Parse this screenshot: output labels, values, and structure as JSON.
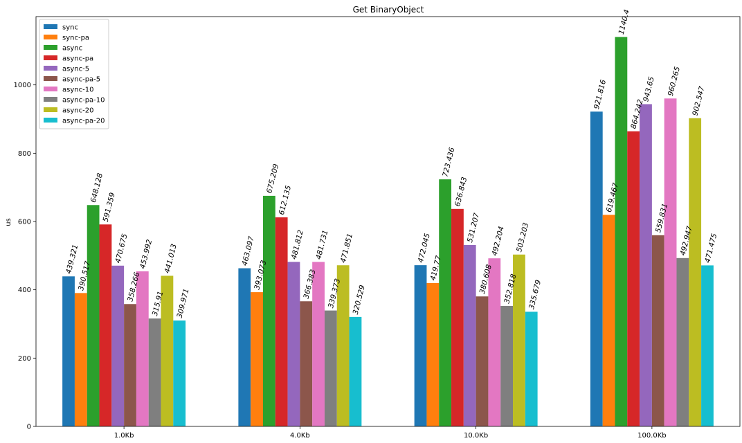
{
  "chart_data": {
    "type": "bar",
    "title": "Get BinaryObject",
    "xlabel": "",
    "ylabel": "us",
    "ylim": [
      0,
      1200
    ],
    "yticks": [
      0,
      200,
      400,
      600,
      800,
      1000
    ],
    "grid": false,
    "legend_position": "top-left",
    "categories": [
      "1.0Kb",
      "4.0Kb",
      "10.0Kb",
      "100.0Kb"
    ],
    "series": [
      {
        "name": "sync",
        "color": "#1f77b4",
        "values": [
          439.321,
          463.097,
          472.045,
          921.816
        ],
        "labels": [
          "439.321",
          "463.097",
          "472.045",
          "921.816"
        ]
      },
      {
        "name": "sync-pa",
        "color": "#ff7f0e",
        "values": [
          390.517,
          393.073,
          419.77,
          619.467
        ],
        "labels": [
          "390.517",
          "393.073",
          "419.77",
          "619.467"
        ]
      },
      {
        "name": "async",
        "color": "#2ca02c",
        "values": [
          648.128,
          675.209,
          723.436,
          1140.4
        ],
        "labels": [
          "648.128",
          "675.209",
          "723.436",
          "1140.4"
        ]
      },
      {
        "name": "async-pa",
        "color": "#d62728",
        "values": [
          591.359,
          612.135,
          636.843,
          864.242
        ],
        "labels": [
          "591.359",
          "612.135",
          "636.843",
          "864.242"
        ]
      },
      {
        "name": "async-5",
        "color": "#9467bd",
        "values": [
          470.675,
          481.812,
          531.207,
          943.65
        ],
        "labels": [
          "470.675",
          "481.812",
          "531.207",
          "943.65"
        ]
      },
      {
        "name": "async-pa-5",
        "color": "#8c564b",
        "values": [
          358.266,
          366.383,
          380.608,
          559.831
        ],
        "labels": [
          "358.266",
          "366.383",
          "380.608",
          "559.831"
        ]
      },
      {
        "name": "async-10",
        "color": "#e377c2",
        "values": [
          453.992,
          481.731,
          492.204,
          960.265
        ],
        "labels": [
          "453.992",
          "481.731",
          "492.204",
          "960.265"
        ]
      },
      {
        "name": "async-pa-10",
        "color": "#7f7f7f",
        "values": [
          315.91,
          339.373,
          352.818,
          492.947
        ],
        "labels": [
          "315.91",
          "339.373",
          "352.818",
          "492.947"
        ]
      },
      {
        "name": "async-20",
        "color": "#bcbd22",
        "values": [
          441.013,
          471.851,
          503.203,
          902.547
        ],
        "labels": [
          "441.013",
          "471.851",
          "503.203",
          "902.547"
        ]
      },
      {
        "name": "async-pa-20",
        "color": "#17becf",
        "values": [
          309.971,
          320.529,
          335.679,
          471.475
        ],
        "labels": [
          "309.971",
          "320.529",
          "335.679",
          "471.475"
        ]
      }
    ]
  }
}
